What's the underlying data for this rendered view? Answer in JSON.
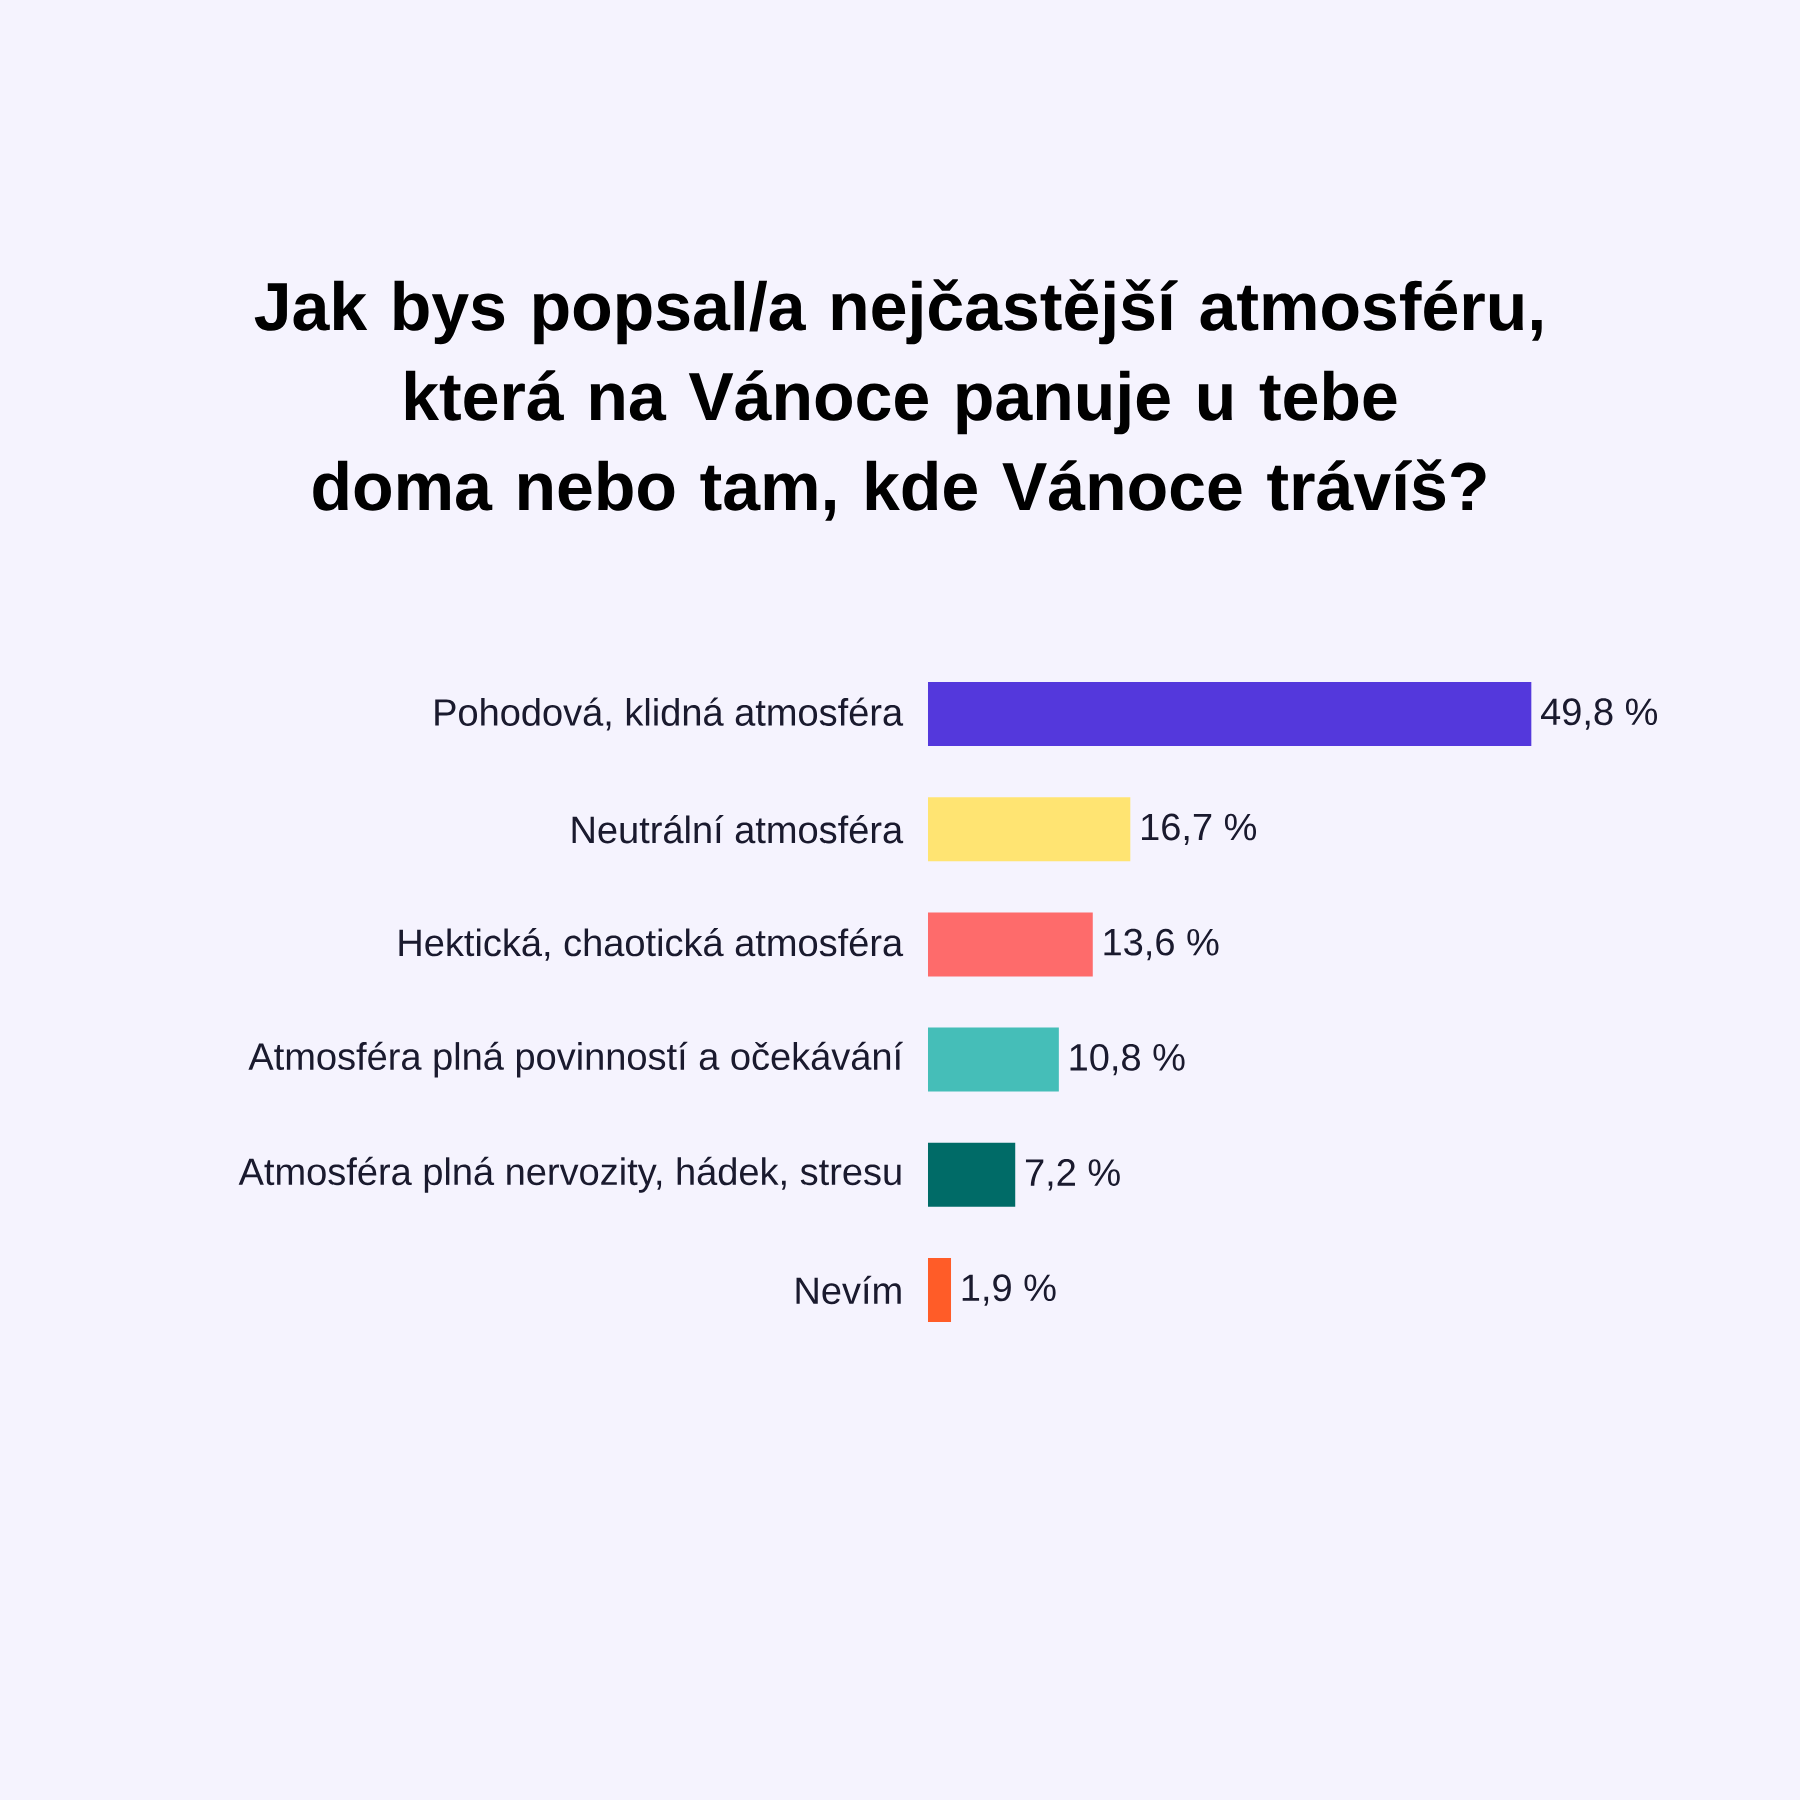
{
  "chart_data": {
    "type": "bar",
    "orientation": "horizontal",
    "title": "Jak bys popsal/a nejčastější atmosféru, která na Vánoce panuje u tebe doma nebo tam, kde Vánoce trávíš?",
    "categories": [
      "Pohodová, klidná atmosféra",
      "Neutrální atmosféra",
      "Hektická,  chaotická atmosféra",
      "Atmosféra plná povinností a očekávání",
      "Atmosféra plná nervozity, hádek, stresu",
      "Nevím"
    ],
    "values": [
      49.8,
      16.7,
      13.6,
      10.8,
      7.2,
      1.9
    ],
    "colors": [
      "#5438dc",
      "#ffe472",
      "#fe6b6b",
      "#45beb8",
      "#006b67",
      "#ff5c28"
    ],
    "value_labels": [
      "49,8 %",
      "16,7 %",
      "13,6 %",
      "10,8 %",
      "7,2 %",
      "1,9 %"
    ]
  }
}
